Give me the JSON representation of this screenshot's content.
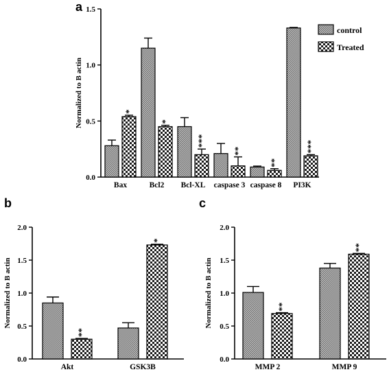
{
  "colors": {
    "control_fill": "#9a9a9a",
    "treated_fill": "#ffffff",
    "ink": "#000000"
  },
  "legend": {
    "control": "control",
    "treated": "Treated"
  },
  "chart_data": [
    {
      "panel": "a",
      "type": "bar",
      "ylabel": "Normalized to B actin",
      "ylim": [
        0,
        1.5
      ],
      "yticks": [
        "0.0",
        "0.5",
        "1.0",
        "1.5"
      ],
      "categories": [
        "Bax",
        "Bcl2",
        "Bcl-XL",
        "caspase 3",
        "caspase 8",
        "PI3K"
      ],
      "series": [
        {
          "name": "control",
          "values": [
            0.28,
            1.15,
            0.45,
            0.21,
            0.09,
            1.33
          ],
          "errors": [
            0.05,
            0.09,
            0.08,
            0.09,
            0.008,
            0.005
          ]
        },
        {
          "name": "Treated",
          "values": [
            0.54,
            0.45,
            0.2,
            0.1,
            0.06,
            0.19
          ],
          "errors": [
            0.012,
            0.012,
            0.05,
            0.08,
            0.015,
            0.01
          ]
        }
      ],
      "significance": [
        "*",
        "*",
        "***",
        "**",
        "**",
        "***"
      ],
      "legend_position": "top-right"
    },
    {
      "panel": "b",
      "type": "bar",
      "ylabel": "Normalized to B actin",
      "ylim": [
        0,
        2.0
      ],
      "yticks": [
        "0.0",
        "0.5",
        "1.0",
        "1.5",
        "2.0"
      ],
      "categories": [
        "Akt",
        "GSK3B"
      ],
      "series": [
        {
          "name": "control",
          "values": [
            0.85,
            0.47
          ],
          "errors": [
            0.09,
            0.08
          ]
        },
        {
          "name": "Treated",
          "values": [
            0.3,
            1.73
          ],
          "errors": [
            0.012,
            0.012
          ]
        }
      ],
      "significance": [
        "**",
        "*"
      ]
    },
    {
      "panel": "c",
      "type": "bar",
      "ylabel": "Normalized to B actin",
      "ylim": [
        0,
        2.0
      ],
      "yticks": [
        "0.0",
        "0.5",
        "1.0",
        "1.5",
        "2.0"
      ],
      "categories": [
        "MMP 2",
        "MMP 9"
      ],
      "series": [
        {
          "name": "control",
          "values": [
            1.01,
            1.38
          ],
          "errors": [
            0.09,
            0.07
          ]
        },
        {
          "name": "Treated",
          "values": [
            0.69,
            1.59
          ],
          "errors": [
            0.012,
            0.012
          ]
        }
      ],
      "significance": [
        "**",
        "**"
      ]
    }
  ]
}
